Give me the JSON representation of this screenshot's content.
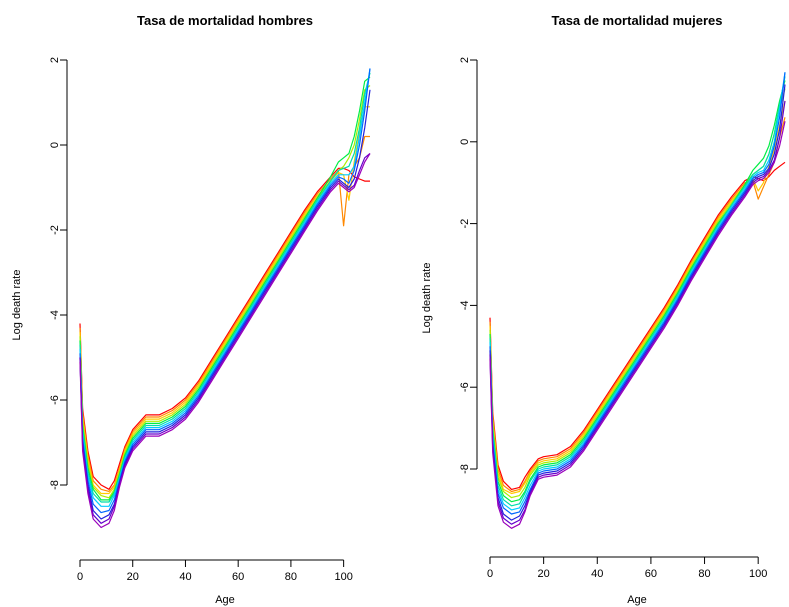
{
  "chart_data": [
    {
      "type": "line",
      "title": "Tasa de mortalidad hombres",
      "xlabel": "Age",
      "ylabel": "Log death rate",
      "xlim": [
        0,
        110
      ],
      "ylim": [
        -9.0,
        1.8
      ],
      "x_ticks": [
        "0",
        "20",
        "40",
        "60",
        "80",
        "100"
      ],
      "y_ticks": [
        "-8",
        "-6",
        "-4",
        "-2",
        "0",
        "2"
      ],
      "x_tick_values": [
        0,
        20,
        40,
        60,
        80,
        100
      ],
      "y_tick_values": [
        -8,
        -6,
        -4,
        -2,
        0,
        2
      ],
      "series_colors": [
        "#ff0000",
        "#ff8800",
        "#ffcc00",
        "#aaee00",
        "#00ee44",
        "#00ddaa",
        "#00ccff",
        "#0066ff",
        "#2222dd",
        "#6600cc",
        "#9900bb"
      ],
      "x": [
        0,
        1,
        3,
        5,
        8,
        11,
        13,
        15,
        17,
        20,
        25,
        30,
        35,
        40,
        45,
        50,
        55,
        60,
        65,
        70,
        75,
        80,
        85,
        90,
        95,
        98,
        100,
        102,
        104,
        106,
        108,
        110
      ],
      "series": [
        {
          "values": [
            -4.2,
            -6.2,
            -7.2,
            -7.8,
            -8.0,
            -8.1,
            -7.9,
            -7.5,
            -7.1,
            -6.7,
            -6.35,
            -6.35,
            -6.2,
            -5.95,
            -5.55,
            -5.05,
            -4.55,
            -4.05,
            -3.55,
            -3.05,
            -2.55,
            -2.05,
            -1.55,
            -1.1,
            -0.75,
            -0.55,
            -0.55,
            -0.6,
            -0.75,
            -0.8,
            -0.85,
            -0.85
          ]
        },
        {
          "values": [
            -4.3,
            -6.3,
            -7.3,
            -7.9,
            -8.1,
            -8.15,
            -8.0,
            -7.6,
            -7.15,
            -6.75,
            -6.4,
            -6.4,
            -6.25,
            -6.0,
            -5.6,
            -5.1,
            -4.6,
            -4.1,
            -3.6,
            -3.1,
            -2.6,
            -2.1,
            -1.6,
            -1.15,
            -0.8,
            -0.6,
            -1.9,
            -0.7,
            -0.5,
            -0.3,
            0.2,
            0.2
          ]
        },
        {
          "values": [
            -4.4,
            -6.4,
            -7.4,
            -8.0,
            -8.2,
            -8.2,
            -8.05,
            -7.65,
            -7.2,
            -6.8,
            -6.45,
            -6.45,
            -6.3,
            -6.05,
            -5.65,
            -5.15,
            -4.65,
            -4.15,
            -3.65,
            -3.15,
            -2.65,
            -2.15,
            -1.65,
            -1.2,
            -0.85,
            -0.65,
            -0.7,
            -1.3,
            -0.4,
            0.3,
            0.9,
            0.9
          ]
        },
        {
          "values": [
            -4.5,
            -6.5,
            -7.5,
            -8.05,
            -8.25,
            -8.3,
            -8.1,
            -7.7,
            -7.25,
            -6.85,
            -6.5,
            -6.5,
            -6.35,
            -6.1,
            -5.7,
            -5.2,
            -4.7,
            -4.2,
            -3.7,
            -3.2,
            -2.7,
            -2.2,
            -1.7,
            -1.25,
            -0.85,
            -0.6,
            -0.5,
            -0.3,
            0.0,
            0.6,
            1.3,
            1.4
          ]
        },
        {
          "values": [
            -4.6,
            -6.6,
            -7.6,
            -8.1,
            -8.35,
            -8.35,
            -8.15,
            -7.75,
            -7.3,
            -6.9,
            -6.55,
            -6.55,
            -6.4,
            -6.15,
            -5.75,
            -5.25,
            -4.75,
            -4.25,
            -3.75,
            -3.25,
            -2.75,
            -2.25,
            -1.75,
            -1.25,
            -0.75,
            -0.4,
            -0.3,
            -0.2,
            0.2,
            0.8,
            1.5,
            1.6
          ]
        },
        {
          "values": [
            -4.7,
            -6.7,
            -7.7,
            -8.2,
            -8.4,
            -8.4,
            -8.2,
            -7.8,
            -7.35,
            -6.95,
            -6.6,
            -6.6,
            -6.45,
            -6.2,
            -5.8,
            -5.3,
            -4.8,
            -4.3,
            -3.8,
            -3.3,
            -2.8,
            -2.3,
            -1.8,
            -1.3,
            -0.85,
            -0.6,
            -0.55,
            -0.5,
            -0.2,
            0.4,
            1.2,
            1.7
          ]
        },
        {
          "values": [
            -4.8,
            -6.8,
            -7.8,
            -8.3,
            -8.5,
            -8.5,
            -8.25,
            -7.85,
            -7.4,
            -7.0,
            -6.65,
            -6.65,
            -6.5,
            -6.25,
            -5.85,
            -5.35,
            -4.85,
            -4.35,
            -3.85,
            -3.35,
            -2.85,
            -2.35,
            -1.85,
            -1.35,
            -0.9,
            -0.7,
            -0.7,
            -0.7,
            -0.5,
            0.2,
            1.0,
            1.8
          ]
        },
        {
          "values": [
            -4.9,
            -6.9,
            -7.9,
            -8.45,
            -8.65,
            -8.6,
            -8.35,
            -7.9,
            -7.45,
            -7.05,
            -6.7,
            -6.7,
            -6.55,
            -6.3,
            -5.9,
            -5.4,
            -4.9,
            -4.4,
            -3.9,
            -3.4,
            -2.9,
            -2.4,
            -1.9,
            -1.4,
            -0.95,
            -0.75,
            -0.8,
            -0.9,
            -0.6,
            0.0,
            0.8,
            1.8
          ]
        },
        {
          "values": [
            -5.0,
            -7.0,
            -8.0,
            -8.6,
            -8.8,
            -8.7,
            -8.45,
            -7.95,
            -7.5,
            -7.1,
            -6.75,
            -6.75,
            -6.6,
            -6.35,
            -5.95,
            -5.45,
            -4.95,
            -4.45,
            -3.95,
            -3.45,
            -2.95,
            -2.45,
            -1.95,
            -1.45,
            -1.0,
            -0.8,
            -0.9,
            -1.0,
            -0.8,
            -0.3,
            0.4,
            1.3
          ]
        },
        {
          "values": [
            -5.0,
            -7.1,
            -8.1,
            -8.7,
            -8.9,
            -8.8,
            -8.5,
            -8.0,
            -7.55,
            -7.15,
            -6.8,
            -6.8,
            -6.65,
            -6.4,
            -6.0,
            -5.5,
            -5.0,
            -4.5,
            -4.0,
            -3.5,
            -3.0,
            -2.5,
            -2.0,
            -1.5,
            -1.05,
            -0.85,
            -0.95,
            -1.05,
            -0.95,
            -0.6,
            -0.3,
            -0.2
          ]
        },
        {
          "values": [
            -5.1,
            -7.2,
            -8.2,
            -8.8,
            -9.0,
            -8.9,
            -8.6,
            -8.05,
            -7.6,
            -7.2,
            -6.85,
            -6.85,
            -6.7,
            -6.45,
            -6.05,
            -5.55,
            -5.05,
            -4.55,
            -4.05,
            -3.55,
            -3.05,
            -2.55,
            -2.05,
            -1.55,
            -1.1,
            -0.9,
            -1.0,
            -1.1,
            -1.0,
            -0.7,
            -0.4,
            -0.2
          ]
        }
      ]
    },
    {
      "type": "line",
      "title": "Tasa de mortalidad mujeres",
      "xlabel": "Age",
      "ylabel": "Log death rate",
      "xlim": [
        0,
        110
      ],
      "ylim": [
        -9.8,
        2.1
      ],
      "x_ticks": [
        "0",
        "20",
        "40",
        "60",
        "80",
        "100"
      ],
      "y_ticks": [
        "-8",
        "-6",
        "-4",
        "-2",
        "0",
        "2"
      ],
      "x_tick_values": [
        0,
        20,
        40,
        60,
        80,
        100
      ],
      "y_tick_values": [
        -8,
        -6,
        -4,
        -2,
        0,
        2
      ],
      "series_colors": [
        "#ff0000",
        "#ff8800",
        "#ffcc00",
        "#aaee00",
        "#00ee44",
        "#00ddaa",
        "#00ccff",
        "#0066ff",
        "#2222dd",
        "#6600cc",
        "#9900bb"
      ],
      "x": [
        0,
        1,
        3,
        5,
        8,
        11,
        13,
        15,
        18,
        20,
        25,
        30,
        35,
        40,
        45,
        50,
        55,
        60,
        65,
        70,
        75,
        80,
        85,
        90,
        95,
        98,
        100,
        102,
        104,
        106,
        108,
        110
      ],
      "series": [
        {
          "values": [
            -4.3,
            -6.6,
            -7.9,
            -8.3,
            -8.5,
            -8.45,
            -8.2,
            -8.0,
            -7.75,
            -7.7,
            -7.65,
            -7.45,
            -7.05,
            -6.55,
            -6.05,
            -5.55,
            -5.05,
            -4.55,
            -4.05,
            -3.5,
            -2.9,
            -2.35,
            -1.8,
            -1.35,
            -0.95,
            -0.85,
            -0.9,
            -0.95,
            -0.85,
            -0.7,
            -0.6,
            -0.5
          ]
        },
        {
          "values": [
            -4.4,
            -6.7,
            -8.0,
            -8.4,
            -8.55,
            -8.5,
            -8.3,
            -8.05,
            -7.8,
            -7.75,
            -7.7,
            -7.5,
            -7.1,
            -6.6,
            -6.1,
            -5.6,
            -5.1,
            -4.6,
            -4.1,
            -3.55,
            -2.95,
            -2.4,
            -1.85,
            -1.4,
            -1.0,
            -0.95,
            -1.4,
            -1.1,
            -0.8,
            -0.5,
            0.1,
            0.6
          ]
        },
        {
          "values": [
            -4.5,
            -6.8,
            -8.1,
            -8.5,
            -8.6,
            -8.55,
            -8.35,
            -8.1,
            -7.85,
            -7.8,
            -7.75,
            -7.55,
            -7.15,
            -6.65,
            -6.15,
            -5.65,
            -5.15,
            -4.65,
            -4.15,
            -3.6,
            -3.0,
            -2.45,
            -1.9,
            -1.45,
            -1.05,
            -0.9,
            -1.2,
            -1.0,
            -0.6,
            -0.2,
            0.4,
            1.0
          ]
        },
        {
          "values": [
            -4.6,
            -6.9,
            -8.2,
            -8.55,
            -8.7,
            -8.65,
            -8.45,
            -8.15,
            -7.9,
            -7.85,
            -7.8,
            -7.6,
            -7.2,
            -6.7,
            -6.2,
            -5.7,
            -5.2,
            -4.7,
            -4.2,
            -3.65,
            -3.05,
            -2.5,
            -1.95,
            -1.5,
            -1.05,
            -0.8,
            -0.7,
            -0.6,
            -0.3,
            0.2,
            0.8,
            1.3
          ]
        },
        {
          "values": [
            -4.7,
            -7.0,
            -8.3,
            -8.65,
            -8.8,
            -8.75,
            -8.55,
            -8.25,
            -7.95,
            -7.9,
            -7.85,
            -7.65,
            -7.25,
            -6.75,
            -6.25,
            -5.75,
            -5.25,
            -4.75,
            -4.25,
            -3.7,
            -3.1,
            -2.55,
            -2.0,
            -1.55,
            -1.05,
            -0.7,
            -0.55,
            -0.4,
            -0.1,
            0.4,
            1.0,
            1.5
          ]
        },
        {
          "values": [
            -4.8,
            -7.1,
            -8.4,
            -8.75,
            -8.9,
            -8.85,
            -8.6,
            -8.3,
            -8.0,
            -7.95,
            -7.9,
            -7.7,
            -7.3,
            -6.8,
            -6.3,
            -5.8,
            -5.3,
            -4.8,
            -4.3,
            -3.75,
            -3.15,
            -2.6,
            -2.05,
            -1.55,
            -1.1,
            -0.8,
            -0.7,
            -0.6,
            -0.3,
            0.2,
            0.9,
            1.6
          ]
        },
        {
          "values": [
            -4.9,
            -7.2,
            -8.5,
            -8.85,
            -9.0,
            -8.95,
            -8.7,
            -8.4,
            -8.05,
            -8.0,
            -7.95,
            -7.75,
            -7.35,
            -6.85,
            -6.35,
            -5.85,
            -5.35,
            -4.85,
            -4.35,
            -3.8,
            -3.2,
            -2.65,
            -2.1,
            -1.6,
            -1.15,
            -0.85,
            -0.75,
            -0.7,
            -0.45,
            0.0,
            0.8,
            1.7
          ]
        },
        {
          "values": [
            -5.0,
            -7.3,
            -8.6,
            -8.95,
            -9.1,
            -9.05,
            -8.8,
            -8.5,
            -8.1,
            -8.05,
            -8.0,
            -7.8,
            -7.4,
            -6.9,
            -6.4,
            -5.9,
            -5.4,
            -4.9,
            -4.4,
            -3.85,
            -3.25,
            -2.7,
            -2.15,
            -1.65,
            -1.2,
            -0.9,
            -0.8,
            -0.75,
            -0.55,
            -0.1,
            0.6,
            1.7
          ]
        },
        {
          "values": [
            -5.1,
            -7.4,
            -8.7,
            -9.1,
            -9.25,
            -9.15,
            -8.9,
            -8.55,
            -8.15,
            -8.1,
            -8.05,
            -7.85,
            -7.45,
            -6.95,
            -6.45,
            -5.95,
            -5.45,
            -4.95,
            -4.45,
            -3.9,
            -3.3,
            -2.75,
            -2.2,
            -1.7,
            -1.25,
            -0.95,
            -0.85,
            -0.8,
            -0.65,
            -0.3,
            0.3,
            1.4
          ]
        },
        {
          "values": [
            -5.2,
            -7.5,
            -8.8,
            -9.2,
            -9.35,
            -9.25,
            -9.0,
            -8.6,
            -8.2,
            -8.15,
            -8.1,
            -7.9,
            -7.5,
            -7.0,
            -6.5,
            -6.0,
            -5.5,
            -5.0,
            -4.5,
            -3.95,
            -3.35,
            -2.8,
            -2.25,
            -1.75,
            -1.3,
            -1.0,
            -0.9,
            -0.85,
            -0.7,
            -0.45,
            0.1,
            1.0
          ]
        },
        {
          "values": [
            -5.3,
            -7.6,
            -8.9,
            -9.3,
            -9.45,
            -9.35,
            -9.05,
            -8.65,
            -8.25,
            -8.2,
            -8.15,
            -7.95,
            -7.55,
            -7.05,
            -6.55,
            -6.05,
            -5.55,
            -5.05,
            -4.55,
            -4.0,
            -3.4,
            -2.85,
            -2.3,
            -1.8,
            -1.35,
            -1.05,
            -0.95,
            -0.9,
            -0.75,
            -0.5,
            -0.1,
            0.5
          ]
        }
      ]
    }
  ]
}
